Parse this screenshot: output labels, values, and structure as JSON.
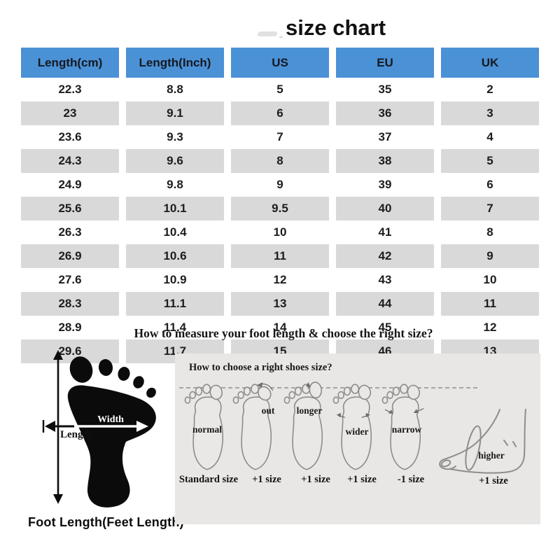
{
  "title": "size chart",
  "table": {
    "header_bg": "#4b91d6",
    "alt_row_bg": "#d9d9d9",
    "headers": [
      "Length(cm)",
      "Length(Inch)",
      "US",
      "EU",
      "UK"
    ],
    "rows": [
      [
        "22.3",
        "8.8",
        "5",
        "35",
        "2"
      ],
      [
        "23",
        "9.1",
        "6",
        "36",
        "3"
      ],
      [
        "23.6",
        "9.3",
        "7",
        "37",
        "4"
      ],
      [
        "24.3",
        "9.6",
        "8",
        "38",
        "5"
      ],
      [
        "24.9",
        "9.8",
        "9",
        "39",
        "6"
      ],
      [
        "25.6",
        "10.1",
        "9.5",
        "40",
        "7"
      ],
      [
        "26.3",
        "10.4",
        "10",
        "41",
        "8"
      ],
      [
        "26.9",
        "10.6",
        "11",
        "42",
        "9"
      ],
      [
        "27.6",
        "10.9",
        "12",
        "43",
        "10"
      ],
      [
        "28.3",
        "11.1",
        "13",
        "44",
        "11"
      ],
      [
        "28.9",
        "11.4",
        "14",
        "45",
        "12"
      ],
      [
        "29.6",
        "11.7",
        "15",
        "46",
        "13"
      ]
    ]
  },
  "measure": {
    "heading": "How to measure your foot length & choose the right size?",
    "footprint": {
      "width_label": "Width",
      "length_label": "Length",
      "caption": "Foot Length(Feet Length)"
    },
    "panel": {
      "heading": "How to choose a right shoes size?",
      "feet": [
        {
          "label": "normal",
          "size": "Standard size"
        },
        {
          "label": "out",
          "size": "+1 size"
        },
        {
          "label": "longer",
          "size": "+1 size"
        },
        {
          "label": "wider",
          "size": "+1 size"
        },
        {
          "label": "narrow",
          "size": "-1 size"
        },
        {
          "label": "higher",
          "size": "+1 size"
        }
      ]
    }
  }
}
